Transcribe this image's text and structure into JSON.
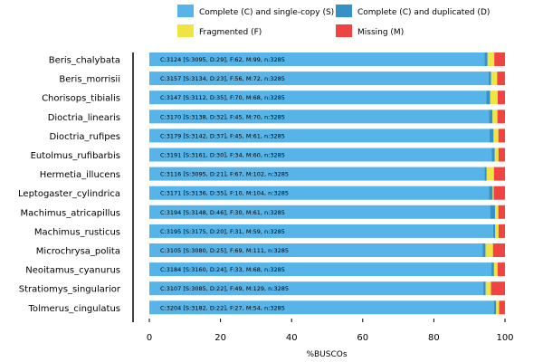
{
  "chart_data": {
    "type": "bar",
    "orientation": "horizontal",
    "stacked": true,
    "xlabel": "%BUSCOs",
    "ylabel": "",
    "xlim": [
      0,
      100
    ],
    "xticks": [
      0,
      20,
      40,
      60,
      80,
      100
    ],
    "grid": false,
    "legend_position": "top",
    "categories": [
      "Beris_chalybata",
      "Beris_morrisii",
      "Chorisops_tibialis",
      "Dioctria_linearis",
      "Dioctria_rufipes",
      "Eutolmus_rufibarbis",
      "Hermetia_illucens",
      "Leptogaster_cylindrica",
      "Machimus_atricapillus",
      "Machimus_rusticus",
      "Microchrysa_polita",
      "Neoitamus_cyanurus",
      "Stratiomys_singularior",
      "Tolmerus_cingulatus"
    ],
    "bar_labels": [
      "C:3124 [S:3095, D:29], F:62, M:99, n:3285",
      "C:3157 [S:3134, D:23], F:56, M:72, n:3285",
      "C:3147 [S:3112, D:35], F:70, M:68, n:3285",
      "C:3170 [S:3138, D:32], F:45, M:70, n:3285",
      "C:3179 [S:3142, D:37], F:45, M:61, n:3285",
      "C:3191 [S:3161, D:30], F:34, M:60, n:3285",
      "C:3116 [S:3095, D:21], F:67, M:102, n:3285",
      "C:3171 [S:3136, D:35], F:10, M:104, n:3285",
      "C:3194 [S:3148, D:46], F:30, M:61, n:3285",
      "C:3195 [S:3175, D:20], F:31, M:59, n:3285",
      "C:3105 [S:3080, D:25], F:69, M:111, n:3285",
      "C:3184 [S:3160, D:24], F:33, M:68, n:3285",
      "C:3107 [S:3085, D:22], F:49, M:129, n:3285",
      "C:3204 [S:3182, D:22], F:27, M:54, n:3285"
    ],
    "series": [
      {
        "name": "Complete (C) and single-copy (S)",
        "color": "#56B4E9",
        "values": [
          94.22,
          95.4,
          94.73,
          95.53,
          95.65,
          96.23,
          94.22,
          95.47,
          95.83,
          96.65,
          93.76,
          96.19,
          93.91,
          96.86
        ]
      },
      {
        "name": "Complete (C) and duplicated (D)",
        "color": "#3492C7",
        "values": [
          0.88,
          0.7,
          1.07,
          0.97,
          1.13,
          0.91,
          0.64,
          1.07,
          1.4,
          0.61,
          0.76,
          0.73,
          0.67,
          0.67
        ]
      },
      {
        "name": "Fragmented (F)",
        "color": "#F0E442",
        "values": [
          1.89,
          1.7,
          2.13,
          1.37,
          1.37,
          1.04,
          2.04,
          0.3,
          0.91,
          0.94,
          2.1,
          1.0,
          1.49,
          0.82
        ]
      },
      {
        "name": "Missing (M)",
        "color": "#F04442",
        "values": [
          3.01,
          2.19,
          2.07,
          2.13,
          1.86,
          1.83,
          3.11,
          3.17,
          1.86,
          1.8,
          3.38,
          2.07,
          3.93,
          1.64
        ]
      }
    ]
  }
}
